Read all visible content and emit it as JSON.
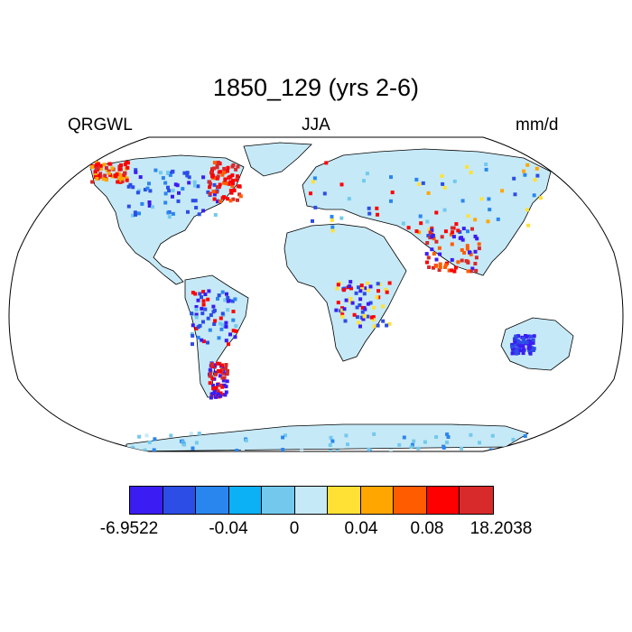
{
  "title": "1850_129 (yrs 2-6)",
  "left_label": "QRGWL",
  "center_label": "JJA",
  "right_label": "mm/d",
  "colorbar": {
    "colors": [
      "#3b1cf2",
      "#2c4de6",
      "#2a86ef",
      "#0cb0f5",
      "#72c9ed",
      "#c6e9f7",
      "#ffe135",
      "#ffa600",
      "#ff5c00",
      "#ff0000",
      "#d82a2a"
    ],
    "labels": [
      "-6.9522",
      "-0.04",
      "0",
      "0.04",
      "0.08",
      "18.2038"
    ]
  },
  "map": {
    "projection": "robinson",
    "ocean_color": "#ffffff",
    "land_fill": "#c6e9f7",
    "coastline_color": "#000000"
  }
}
